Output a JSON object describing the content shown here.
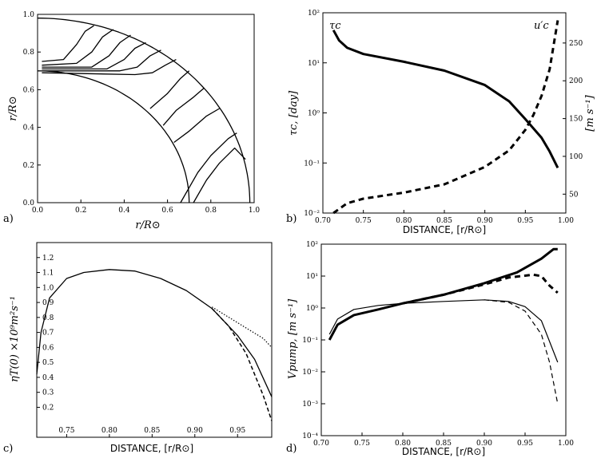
{
  "chart_data": [
    {
      "panel": "a",
      "type": "line",
      "panel_label": "a)",
      "xlabel": "r/R⊙",
      "ylabel": "r/R⊙",
      "xlim": [
        0,
        1.0
      ],
      "ylim": [
        0,
        1.0
      ],
      "xticks": [
        "0.0",
        "0.2",
        "0.4",
        "0.6",
        "0.8",
        "1.0"
      ],
      "yticks": [
        "0.0",
        "0.2",
        "0.4",
        "0.6",
        "0.8",
        "1.0"
      ],
      "boundaries": [
        {
          "name": "surface",
          "radius": 0.98
        },
        {
          "name": "base",
          "radius": 0.7
        }
      ],
      "contours": [
        {
          "x": [
            0.02,
            0.12,
            0.18,
            0.22,
            0.26
          ],
          "y": [
            0.75,
            0.76,
            0.84,
            0.91,
            0.94
          ]
        },
        {
          "x": [
            0.02,
            0.18,
            0.25,
            0.3,
            0.35
          ],
          "y": [
            0.73,
            0.74,
            0.8,
            0.88,
            0.92
          ]
        },
        {
          "x": [
            0.02,
            0.25,
            0.33,
            0.38,
            0.43
          ],
          "y": [
            0.72,
            0.72,
            0.78,
            0.85,
            0.89
          ]
        },
        {
          "x": [
            0.02,
            0.32,
            0.4,
            0.45,
            0.5
          ],
          "y": [
            0.71,
            0.71,
            0.76,
            0.82,
            0.85
          ]
        },
        {
          "x": [
            0.02,
            0.38,
            0.46,
            0.52,
            0.57
          ],
          "y": [
            0.7,
            0.7,
            0.72,
            0.78,
            0.81
          ]
        },
        {
          "x": [
            0.02,
            0.45,
            0.53,
            0.59,
            0.64
          ],
          "y": [
            0.69,
            0.68,
            0.69,
            0.73,
            0.76
          ]
        },
        {
          "x": [
            0.52,
            0.6,
            0.66,
            0.7
          ],
          "y": [
            0.5,
            0.58,
            0.66,
            0.7
          ]
        },
        {
          "x": [
            0.58,
            0.64,
            0.72,
            0.77
          ],
          "y": [
            0.41,
            0.49,
            0.56,
            0.61
          ]
        },
        {
          "x": [
            0.63,
            0.7,
            0.78,
            0.84
          ],
          "y": [
            0.32,
            0.38,
            0.46,
            0.5
          ]
        },
        {
          "x": [
            0.66,
            0.74,
            0.8,
            0.88,
            0.92
          ],
          "y": [
            0.0,
            0.16,
            0.25,
            0.34,
            0.37
          ]
        },
        {
          "x": [
            0.72,
            0.78,
            0.84,
            0.91,
            0.96
          ],
          "y": [
            0.0,
            0.12,
            0.21,
            0.29,
            0.23
          ]
        }
      ]
    },
    {
      "panel": "b",
      "type": "line",
      "panel_label": "b)",
      "xlabel": "DISTANCE, [r/R⊙]",
      "ylabel_left": "τc, [day]",
      "ylabel_right": "[m s⁻¹]",
      "xlim": [
        0.7,
        1.0
      ],
      "ylim_left_log": [
        0.01,
        100
      ],
      "ylim_right": [
        25,
        290
      ],
      "xticks": [
        "0.70",
        "0.75",
        "0.80",
        "0.85",
        "0.90",
        "0.95",
        "1.00"
      ],
      "yticks_left": [
        "10⁻²",
        "10⁻¹",
        "10⁰",
        "10¹",
        "10²"
      ],
      "yticks_right": [
        "50",
        "100",
        "150",
        "200",
        "250"
      ],
      "annotations": [
        "τc",
        "u′c"
      ],
      "series": [
        {
          "name": "τc",
          "axis": "left",
          "style": "solid-thick",
          "x": [
            0.713,
            0.72,
            0.73,
            0.75,
            0.8,
            0.85,
            0.9,
            0.93,
            0.95,
            0.97,
            0.98,
            0.99
          ],
          "y": [
            45,
            28,
            20,
            15,
            10.5,
            7.0,
            3.6,
            1.7,
            0.75,
            0.32,
            0.17,
            0.08
          ]
        },
        {
          "name": "u′c",
          "axis": "right",
          "style": "dashed-thick",
          "x": [
            0.713,
            0.73,
            0.75,
            0.8,
            0.85,
            0.9,
            0.93,
            0.95,
            0.96,
            0.97,
            0.98,
            0.99
          ],
          "y": [
            25,
            38,
            44,
            52,
            63,
            86,
            108,
            135,
            155,
            180,
            215,
            280
          ]
        }
      ]
    },
    {
      "panel": "c",
      "type": "line",
      "panel_label": "c)",
      "xlabel": "DISTANCE, [r/R⊙]",
      "ylabel": "ηT(0) ×10⁹m²s⁻¹",
      "xlim": [
        0.715,
        0.99
      ],
      "ylim": [
        0.0,
        1.3
      ],
      "xticks": [
        "0.75",
        "0.80",
        "0.85",
        "0.90",
        "0.95"
      ],
      "yticks": [
        "0.2",
        "0.3",
        "0.4",
        "0.5",
        "0.6",
        "0.7",
        "0.8",
        "0.9",
        "1.0",
        "1.1",
        "1.2"
      ],
      "series": [
        {
          "style": "solid",
          "x": [
            0.715,
            0.72,
            0.73,
            0.75,
            0.77,
            0.8,
            0.83,
            0.86,
            0.89,
            0.92,
            0.95,
            0.97,
            0.99
          ],
          "y": [
            0.42,
            0.7,
            0.93,
            1.06,
            1.1,
            1.12,
            1.11,
            1.06,
            0.98,
            0.86,
            0.68,
            0.52,
            0.27
          ]
        },
        {
          "style": "dashed",
          "x": [
            0.92,
            0.94,
            0.96,
            0.97,
            0.98,
            0.99
          ],
          "y": [
            0.86,
            0.74,
            0.56,
            0.42,
            0.28,
            0.11
          ]
        },
        {
          "style": "dotted",
          "x": [
            0.92,
            0.94,
            0.96,
            0.98,
            0.99
          ],
          "y": [
            0.87,
            0.8,
            0.73,
            0.66,
            0.6
          ]
        }
      ]
    },
    {
      "panel": "d",
      "type": "line",
      "panel_label": "d)",
      "xlabel": "DISTANCE, [r/R⊙]",
      "ylabel": "Vpump, [m s⁻¹]",
      "xlim": [
        0.7,
        1.0
      ],
      "ylim_log": [
        0.0001,
        100
      ],
      "xticks": [
        "0.70",
        "0.75",
        "0.80",
        "0.85",
        "0.90",
        "0.95",
        "1.00"
      ],
      "yticks": [
        "10⁻⁴",
        "10⁻³",
        "10⁻²",
        "10⁻¹",
        "10⁰",
        "10¹",
        "10²"
      ],
      "series": [
        {
          "style": "solid-thick",
          "x": [
            0.71,
            0.72,
            0.74,
            0.77,
            0.8,
            0.85,
            0.9,
            0.94,
            0.97,
            0.985,
            0.99
          ],
          "y": [
            0.1,
            0.3,
            0.6,
            0.9,
            1.4,
            2.6,
            6,
            13,
            35,
            70,
            70
          ]
        },
        {
          "style": "dashed-thick",
          "x": [
            0.8,
            0.85,
            0.9,
            0.93,
            0.96,
            0.97,
            0.98,
            0.99
          ],
          "y": [
            1.4,
            2.6,
            5.5,
            9,
            11,
            10,
            5,
            3
          ]
        },
        {
          "style": "solid-thin",
          "x": [
            0.71,
            0.72,
            0.74,
            0.77,
            0.8,
            0.85,
            0.9,
            0.93,
            0.95,
            0.97,
            0.99
          ],
          "y": [
            0.15,
            0.45,
            0.9,
            1.2,
            1.4,
            1.6,
            1.8,
            1.6,
            1.1,
            0.4,
            0.02
          ]
        },
        {
          "style": "dashed-thin",
          "x": [
            0.9,
            0.93,
            0.95,
            0.97,
            0.98,
            0.99
          ],
          "y": [
            1.8,
            1.5,
            0.8,
            0.15,
            0.02,
            0.001
          ]
        }
      ]
    }
  ]
}
